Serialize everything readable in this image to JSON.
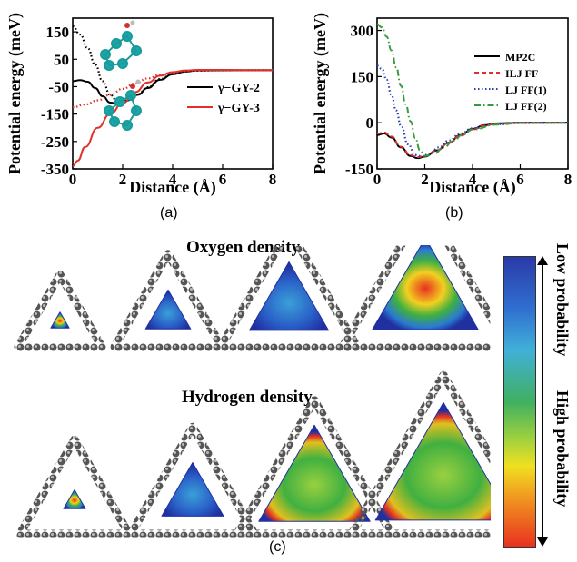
{
  "chart_data": [
    {
      "type": "line",
      "panel": "(a)",
      "xlabel": "Distance (Å)",
      "ylabel": "Potential energy (meV)",
      "xlim": [
        0,
        8
      ],
      "ylim": [
        -350,
        200
      ],
      "xticks": [
        "0",
        "2",
        "4",
        "6",
        "8"
      ],
      "yticks": [
        "150",
        "50",
        "-50",
        "-150",
        "-250",
        "-350"
      ],
      "legend_position": "right",
      "series": [
        {
          "name": "γ−GY-2",
          "color": "#000000",
          "style": "solid",
          "x": [
            0,
            0.3,
            0.6,
            0.9,
            1.2,
            1.5,
            1.8,
            2.2,
            2.6,
            3.0,
            3.5,
            4.0,
            4.5,
            5.0,
            6.0,
            7.0,
            8.0
          ],
          "y": [
            -30,
            -26,
            -32,
            -55,
            -85,
            -108,
            -112,
            -100,
            -80,
            -55,
            -25,
            -5,
            5,
            9,
            10,
            10,
            10
          ]
        },
        {
          "name": "",
          "color": "#000000",
          "style": "dotted",
          "x": [
            0,
            0.3,
            0.6,
            0.9,
            1.2,
            1.5,
            1.8,
            2.2,
            2.6,
            3.0,
            3.5,
            4.0,
            4.5,
            5.0,
            6.0,
            7.0,
            8.0
          ],
          "y": [
            170,
            140,
            90,
            30,
            -30,
            -80,
            -105,
            -100,
            -78,
            -52,
            -22,
            -3,
            6,
            9,
            10,
            10,
            10
          ]
        },
        {
          "name": "γ−GY-3",
          "color": "#e0302a",
          "style": "solid",
          "x": [
            0,
            0.2,
            0.5,
            1.0,
            1.5,
            2.0,
            2.5,
            3.0,
            3.5,
            4.0,
            4.5,
            5.0,
            6.0,
            7.0,
            8.0
          ],
          "y": [
            -340,
            -320,
            -270,
            -200,
            -150,
            -110,
            -70,
            -35,
            -10,
            3,
            9,
            11,
            11,
            10,
            10
          ]
        },
        {
          "name": "",
          "color": "#e0302a",
          "style": "dotted",
          "x": [
            0,
            0.5,
            1.0,
            1.5,
            2.0,
            2.5,
            3.0,
            3.5,
            4.0,
            4.5,
            5.0,
            6.0,
            7.0,
            8.0
          ],
          "y": [
            -125,
            -115,
            -100,
            -80,
            -58,
            -38,
            -20,
            -7,
            2,
            7,
            10,
            11,
            10,
            10
          ]
        }
      ]
    },
    {
      "type": "line",
      "panel": "(b)",
      "xlabel": "Distance (Å)",
      "ylabel": "Potential energy (meV)",
      "xlim": [
        0,
        8
      ],
      "ylim": [
        -150,
        340
      ],
      "xticks": [
        "0",
        "2",
        "4",
        "6",
        "8"
      ],
      "yticks": [
        "300",
        "150",
        "0",
        "-150"
      ],
      "legend_position": "top-right",
      "series": [
        {
          "name": "MP2C",
          "color": "#000000",
          "style": "solid",
          "x": [
            0,
            0.3,
            0.6,
            1.0,
            1.4,
            1.7,
            2.0,
            2.5,
            3.0,
            3.5,
            4.0,
            4.5,
            5.0,
            6.0,
            7.0,
            8.0
          ],
          "y": [
            -40,
            -35,
            -48,
            -80,
            -108,
            -115,
            -110,
            -90,
            -65,
            -40,
            -20,
            -8,
            -2,
            0,
            0,
            0
          ]
        },
        {
          "name": "ILJ FF",
          "color": "#e0302a",
          "style": "dashed",
          "x": [
            0,
            0.3,
            0.6,
            1.0,
            1.4,
            1.7,
            2.0,
            2.5,
            3.0,
            3.5,
            4.0,
            4.5,
            5.0,
            6.0,
            7.0,
            8.0
          ],
          "y": [
            -35,
            -32,
            -45,
            -78,
            -105,
            -112,
            -108,
            -90,
            -66,
            -42,
            -22,
            -9,
            -3,
            0,
            0,
            0
          ]
        },
        {
          "name": "LJ FF(1)",
          "color": "#2b3fb0",
          "style": "dotted",
          "x": [
            0,
            0.2,
            0.4,
            0.6,
            0.8,
            1.0,
            1.3,
            1.6,
            1.9,
            2.2,
            2.6,
            3.0,
            3.5,
            4.0,
            5.0,
            6.0,
            8.0
          ],
          "y": [
            185,
            175,
            140,
            90,
            40,
            -10,
            -70,
            -105,
            -110,
            -100,
            -80,
            -58,
            -35,
            -18,
            -5,
            -1,
            0
          ]
        },
        {
          "name": "LJ FF(2)",
          "color": "#3a9a3a",
          "style": "dashdot",
          "x": [
            0,
            0.2,
            0.4,
            0.6,
            0.8,
            1.0,
            1.2,
            1.4,
            1.6,
            1.8,
            2.0,
            2.4,
            2.8,
            3.2,
            3.6,
            4.0,
            5.0,
            6.0,
            8.0
          ],
          "y": [
            320,
            310,
            280,
            235,
            180,
            120,
            60,
            5,
            -50,
            -90,
            -108,
            -100,
            -80,
            -58,
            -38,
            -22,
            -6,
            -1,
            0
          ]
        }
      ]
    }
  ],
  "panel_c": {
    "letter": "(c)",
    "oxygen_title": "Oxygen density",
    "hydrogen_title": "Hydrogen density",
    "colorbar_low": "Low probability",
    "colorbar_high": "High probability"
  }
}
